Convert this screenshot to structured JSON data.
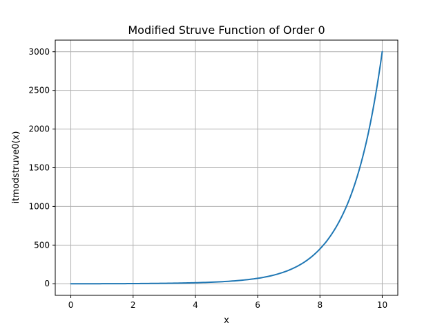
{
  "chart_data": {
    "type": "line",
    "title": "Modified Struve Function of Order 0",
    "xlabel": "x",
    "ylabel": "itmodstruve0(x)",
    "xlim": [
      -0.5,
      10.5
    ],
    "ylim": [
      -150,
      3150
    ],
    "xticks": [
      0,
      2,
      4,
      6,
      8,
      10
    ],
    "yticks": [
      0,
      500,
      1000,
      1500,
      2000,
      2500,
      3000
    ],
    "xtick_labels": [
      "0",
      "2",
      "4",
      "6",
      "8",
      "10"
    ],
    "ytick_labels": [
      "0",
      "500",
      "1000",
      "1500",
      "2000",
      "2500",
      "3000"
    ],
    "grid": true,
    "series": [
      {
        "color": "#1f77b4",
        "x": [
          0,
          0.5,
          1,
          1.5,
          2,
          2.5,
          3,
          3.5,
          4,
          4.5,
          5,
          5.5,
          6,
          6.5,
          7,
          7.5,
          8,
          8.5,
          9,
          9.5,
          10
        ],
        "y": [
          0,
          0.1,
          0.4,
          1.0,
          2.0,
          3.5,
          5.5,
          8.5,
          13,
          20,
          30,
          46,
          70,
          110,
          175,
          280,
          450,
          720,
          1150,
          1850,
          3000
        ]
      }
    ]
  }
}
